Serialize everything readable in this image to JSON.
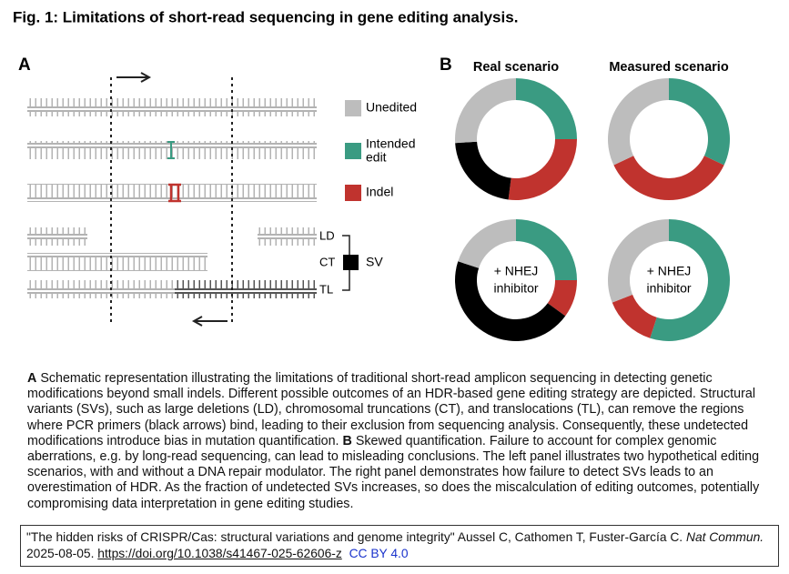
{
  "title": "Fig. 1: Limitations of short-read sequencing in gene editing analysis.",
  "panel_a": {
    "label": "A",
    "legend": [
      "Unedited",
      [
        "Intended",
        "edit"
      ],
      "Indel"
    ],
    "legend_colors": [
      "#bdbdbd",
      "#3a9b82",
      "#c0332e"
    ],
    "row_labels": [
      "LD",
      "CT",
      "TL"
    ],
    "sv_label": "SV"
  },
  "panel_b": {
    "label": "B"
  },
  "chart_data": [
    {
      "type": "pie",
      "title": "Real scenario",
      "values": [
        25,
        27,
        22,
        26
      ],
      "colors": [
        "#3a9b82",
        "#c0332e",
        "#000000",
        "#bdbdbd"
      ]
    },
    {
      "type": "pie",
      "title": "Measured scenario",
      "values": [
        32,
        36,
        32
      ],
      "colors": [
        "#3a9b82",
        "#c0332e",
        "#bdbdbd"
      ]
    },
    {
      "type": "pie",
      "center_label": [
        "+ NHEJ",
        "inhibitor"
      ],
      "values": [
        25,
        10,
        45,
        20
      ],
      "colors": [
        "#3a9b82",
        "#c0332e",
        "#000000",
        "#bdbdbd"
      ]
    },
    {
      "type": "pie",
      "center_label": [
        "+ NHEJ",
        "inhibitor"
      ],
      "values": [
        55,
        14,
        31
      ],
      "colors": [
        "#3a9b82",
        "#c0332e",
        "#bdbdbd"
      ]
    }
  ],
  "caption": {
    "a_label": "A",
    "a_text": "Schematic representation illustrating the limitations of traditional short-read amplicon sequencing in detecting genetic modifications beyond small indels. Different possible outcomes of an HDR-based gene editing strategy are depicted. Structural variants (SVs), such as large deletions (LD), chromosomal truncations (CT), and translocations (TL), can remove the regions where PCR primers (black arrows) bind, leading to their exclusion from sequencing analysis. Consequently, these undetected modifications introduce bias in mutation quantification.",
    "b_label": "B",
    "b_text": "Skewed quantification. Failure to account for complex genomic aberrations, e.g. by long-read sequencing, can lead to misleading conclusions. The left panel illustrates two hypothetical editing scenarios, with and without a DNA repair modulator. The right panel demonstrates how failure to detect SVs leads to an overestimation of HDR. As the fraction of undetected SVs increases, so does the miscalculation of editing outcomes, potentially compromising data interpretation in gene editing studies."
  },
  "citation": {
    "text": "\"The hidden risks of CRISPR/Cas: structural variations and genome integrity\" Aussel C, Cathomen T, Fuster-García C.",
    "journal": "Nat Commun.",
    "date": "2025-08-05.",
    "doi": "https://doi.org/10.1038/s41467-025-62606-z",
    "license": "CC BY 4.0"
  }
}
